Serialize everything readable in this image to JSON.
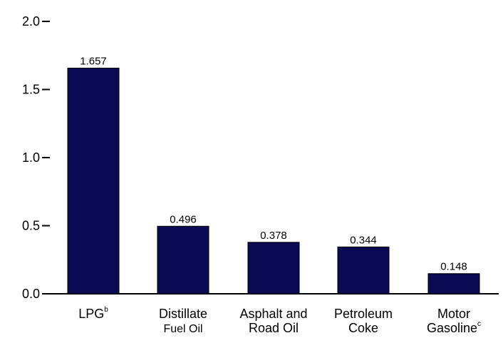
{
  "chart_data": {
    "type": "bar",
    "categories": [
      {
        "lines": [
          "LPG"
        ],
        "superscript": "b"
      },
      {
        "lines": [
          "Distillate",
          "Fuel Oil"
        ],
        "superscript": ""
      },
      {
        "lines": [
          "Asphalt and",
          "Road Oil"
        ],
        "superscript": ""
      },
      {
        "lines": [
          "Petroleum",
          "Coke"
        ],
        "superscript": ""
      },
      {
        "lines": [
          "Motor",
          "Gasoline"
        ],
        "superscript": "c"
      }
    ],
    "values": [
      1.657,
      0.496,
      0.378,
      0.344,
      0.148
    ],
    "data_labels": [
      "1.657",
      "0.496",
      "0.378",
      "0.344",
      "0.148"
    ],
    "y_ticks": [
      0.0,
      0.5,
      1.0,
      1.5,
      2.0
    ],
    "y_tick_labels": [
      "0.0",
      "0.5",
      "1.0",
      "1.5",
      "2.0"
    ],
    "ylim": [
      0,
      2.0
    ],
    "grid": false,
    "bar_color": "#0a0a55"
  }
}
